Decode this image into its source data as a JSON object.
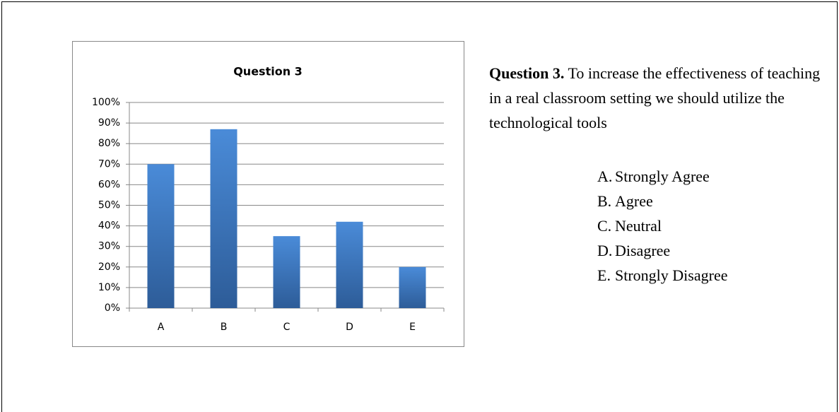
{
  "chart_data": {
    "type": "bar",
    "title": "Question 3",
    "categories": [
      "A",
      "B",
      "C",
      "D",
      "E"
    ],
    "values": [
      70,
      87,
      35,
      42,
      20
    ],
    "color": "#3b78c4",
    "ylim": [
      0,
      100
    ],
    "yticks": [
      {
        "value": 0,
        "label": "0%"
      },
      {
        "value": 10,
        "label": "10%"
      },
      {
        "value": 20,
        "label": "20%"
      },
      {
        "value": 30,
        "label": "30%"
      },
      {
        "value": 40,
        "label": "40%"
      },
      {
        "value": 50,
        "label": "50%"
      },
      {
        "value": 60,
        "label": "60%"
      },
      {
        "value": 70,
        "label": "70%"
      },
      {
        "value": 80,
        "label": "80%"
      },
      {
        "value": 90,
        "label": "90%"
      },
      {
        "value": 100,
        "label": "100%"
      }
    ],
    "grid": true
  },
  "question": {
    "label": "Question 3.",
    "text": "To increase the effectiveness of teaching in a real classroom setting we should utilize the technological tools",
    "options": [
      {
        "letter": "A.",
        "text": "Strongly Agree"
      },
      {
        "letter": "B.",
        "text": "Agree"
      },
      {
        "letter": "C.",
        "text": "Neutral"
      },
      {
        "letter": "D.",
        "text": "Disagree"
      },
      {
        "letter": "E.",
        "text": "Strongly Disagree"
      }
    ]
  }
}
